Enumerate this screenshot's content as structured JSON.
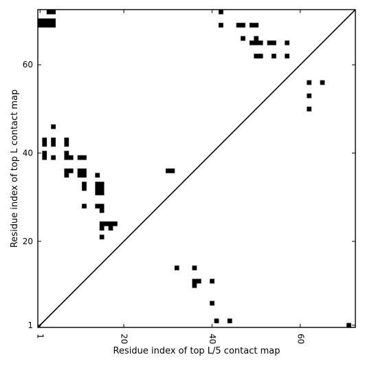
{
  "chart_data": {
    "type": "heatmap",
    "subtype": "contact-map",
    "xlabel": "Residue index of top L/5 contact map",
    "ylabel": "Residue index of top L contact map",
    "xlim": [
      0.5,
      72.5
    ],
    "ylim": [
      0.5,
      72.5
    ],
    "xticks": [
      1,
      20,
      40,
      60
    ],
    "yticks": [
      1,
      20,
      40,
      60
    ],
    "xtick_rotation": 270,
    "grid": false,
    "legend": "none",
    "diagonal_line": true,
    "cell_color": "#000000",
    "background_color": "#ffffff",
    "upper_contacts": [
      [
        1,
        70
      ],
      [
        2,
        70
      ],
      [
        3,
        70
      ],
      [
        4,
        70
      ],
      [
        1,
        69
      ],
      [
        2,
        69
      ],
      [
        3,
        69
      ],
      [
        4,
        69
      ],
      [
        3,
        72
      ],
      [
        4,
        72
      ],
      [
        4,
        46
      ],
      [
        2,
        43
      ],
      [
        4,
        43
      ],
      [
        7,
        43
      ],
      [
        2,
        42
      ],
      [
        4,
        42
      ],
      [
        7,
        42
      ],
      [
        2,
        40
      ],
      [
        7,
        40
      ],
      [
        2,
        39
      ],
      [
        4,
        39
      ],
      [
        7,
        39
      ],
      [
        8,
        39
      ],
      [
        10,
        39
      ],
      [
        11,
        39
      ],
      [
        7,
        36
      ],
      [
        8,
        36
      ],
      [
        10,
        36
      ],
      [
        11,
        36
      ],
      [
        7,
        35
      ],
      [
        10,
        35
      ],
      [
        11,
        35
      ],
      [
        14,
        35
      ],
      [
        14,
        33
      ],
      [
        15,
        33
      ],
      [
        11,
        33
      ],
      [
        14,
        32
      ],
      [
        15,
        32
      ],
      [
        11,
        32
      ],
      [
        14,
        31
      ],
      [
        15,
        31
      ],
      [
        11,
        28
      ],
      [
        14,
        28
      ],
      [
        15,
        28
      ],
      [
        15,
        27
      ],
      [
        15,
        24
      ],
      [
        16,
        24
      ],
      [
        17,
        24
      ],
      [
        18,
        24
      ],
      [
        15,
        23
      ],
      [
        17,
        23
      ],
      [
        15,
        21
      ],
      [
        30,
        36
      ],
      [
        31,
        36
      ],
      [
        42,
        72
      ],
      [
        42,
        69
      ],
      [
        46,
        69
      ],
      [
        47,
        69
      ],
      [
        49,
        69
      ],
      [
        50,
        69
      ],
      [
        47,
        66
      ],
      [
        50,
        66
      ],
      [
        49,
        65
      ],
      [
        50,
        65
      ],
      [
        51,
        65
      ],
      [
        53,
        65
      ],
      [
        54,
        65
      ],
      [
        57,
        65
      ],
      [
        50,
        62
      ],
      [
        51,
        62
      ],
      [
        54,
        62
      ],
      [
        57,
        62
      ],
      [
        62,
        56
      ],
      [
        65,
        56
      ],
      [
        62,
        53
      ],
      [
        62,
        50
      ]
    ],
    "lower_contacts": [
      [
        32,
        14
      ],
      [
        36,
        14
      ],
      [
        36,
        11
      ],
      [
        37,
        11
      ],
      [
        40,
        11
      ],
      [
        36,
        10
      ],
      [
        40,
        6
      ],
      [
        41,
        2
      ],
      [
        44,
        2
      ],
      [
        71,
        1
      ]
    ]
  }
}
